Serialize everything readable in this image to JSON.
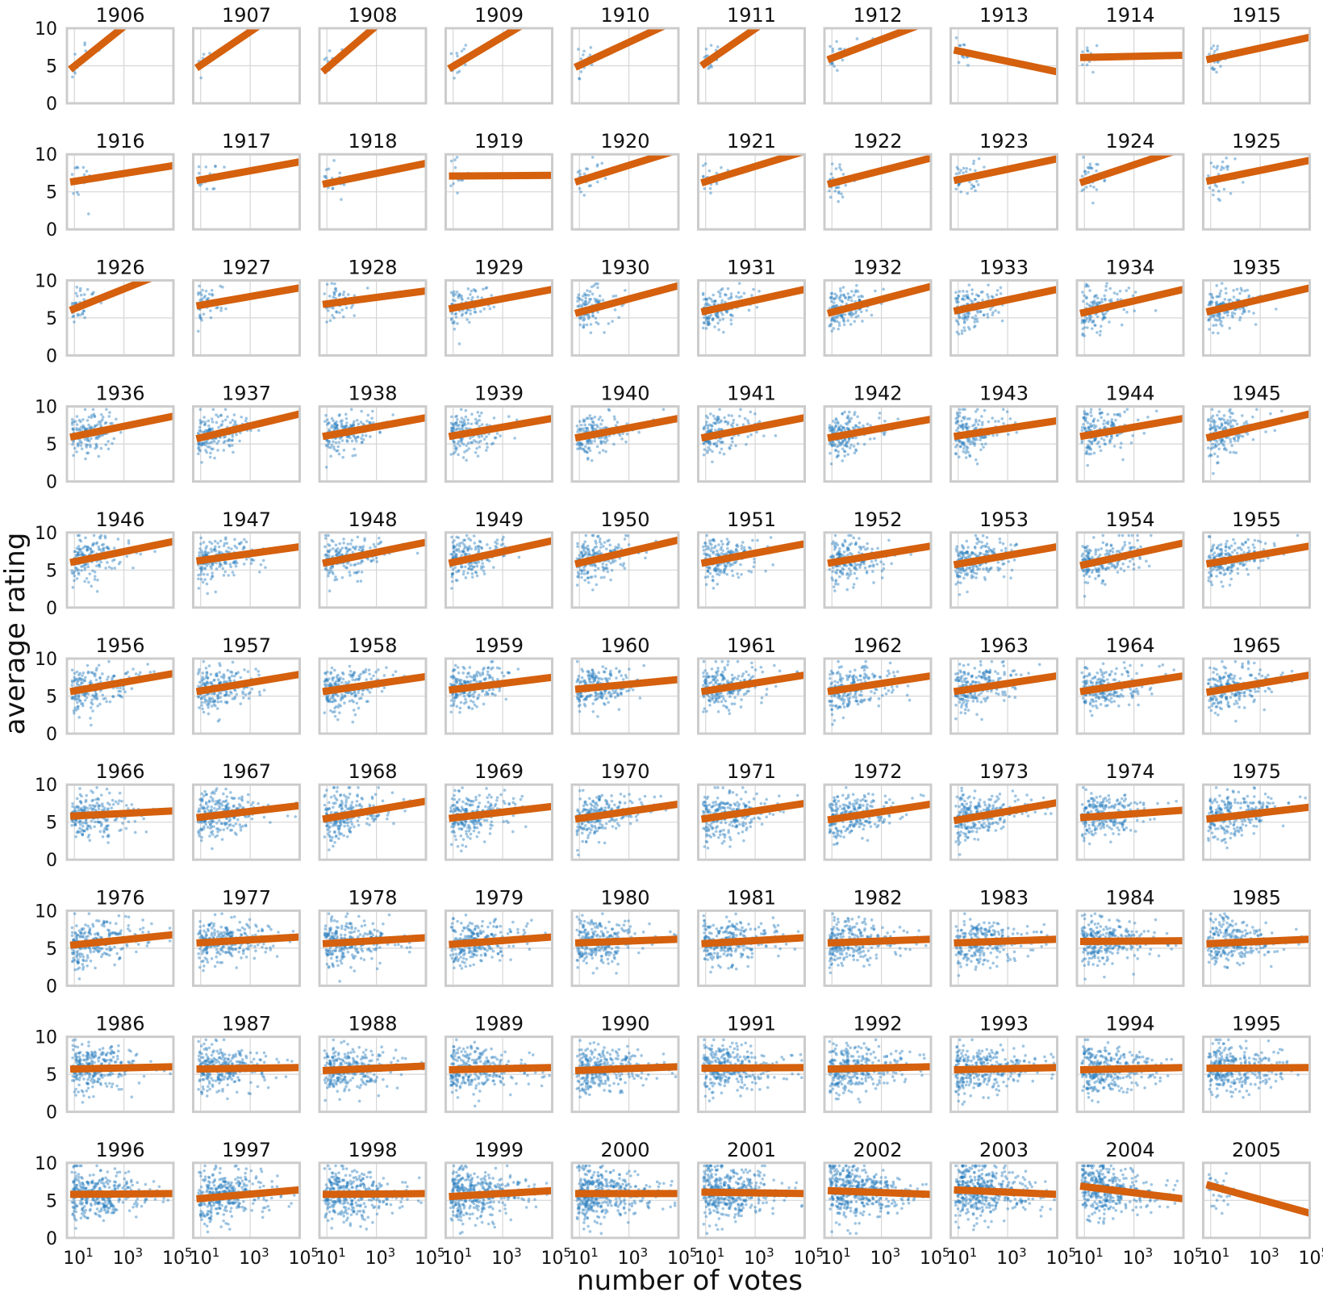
{
  "chart_data": {
    "type": "scatter",
    "layout": "small-multiples",
    "xlabel": "number of votes",
    "ylabel": "average rating",
    "x_scale": "log10",
    "xlim": [
      5,
      100000
    ],
    "ylim": [
      0,
      10
    ],
    "yticks": [
      {
        "value": 0,
        "label": "0"
      },
      {
        "value": 5,
        "label": "5"
      },
      {
        "value": 10,
        "label": "10"
      }
    ],
    "xticks": [
      {
        "value": 10,
        "base": "10",
        "exp": "1"
      },
      {
        "value": 1000,
        "base": "10",
        "exp": "3"
      },
      {
        "value": 100000,
        "base": "10",
        "exp": "5"
      }
    ],
    "grid": true,
    "point_color": "#2a7fbf",
    "line_color": "#d5600d",
    "panels": [
      {
        "year": "1906",
        "fit": [
          4.5,
          15.5
        ],
        "n": 12
      },
      {
        "year": "1907",
        "fit": [
          4.7,
          14.0
        ],
        "n": 8
      },
      {
        "year": "1908",
        "fit": [
          4.2,
          16.0
        ],
        "n": 10
      },
      {
        "year": "1909",
        "fit": [
          4.6,
          12.8
        ],
        "n": 14
      },
      {
        "year": "1910",
        "fit": [
          4.8,
          11.2
        ],
        "n": 18
      },
      {
        "year": "1911",
        "fit": [
          5.0,
          14.5
        ],
        "n": 16
      },
      {
        "year": "1912",
        "fit": [
          5.8,
          11.0
        ],
        "n": 22
      },
      {
        "year": "1913",
        "fit": [
          7.1,
          4.2
        ],
        "n": 16
      },
      {
        "year": "1914",
        "fit": [
          6.1,
          6.4
        ],
        "n": 18
      },
      {
        "year": "1915",
        "fit": [
          5.8,
          8.8
        ],
        "n": 24
      },
      {
        "year": "1916",
        "fit": [
          6.3,
          8.5
        ],
        "n": 22
      },
      {
        "year": "1917",
        "fit": [
          6.5,
          9.0
        ],
        "n": 20
      },
      {
        "year": "1918",
        "fit": [
          6.0,
          8.8
        ],
        "n": 22
      },
      {
        "year": "1919",
        "fit": [
          7.1,
          7.2
        ],
        "n": 18
      },
      {
        "year": "1920",
        "fit": [
          6.3,
          10.6
        ],
        "n": 30
      },
      {
        "year": "1921",
        "fit": [
          6.2,
          10.4
        ],
        "n": 30
      },
      {
        "year": "1922",
        "fit": [
          6.0,
          9.5
        ],
        "n": 34
      },
      {
        "year": "1923",
        "fit": [
          6.5,
          9.4
        ],
        "n": 36
      },
      {
        "year": "1924",
        "fit": [
          6.2,
          10.8
        ],
        "n": 36
      },
      {
        "year": "1925",
        "fit": [
          6.4,
          9.2
        ],
        "n": 40
      },
      {
        "year": "1926",
        "fit": [
          6.0,
          11.5
        ],
        "n": 40
      },
      {
        "year": "1927",
        "fit": [
          6.6,
          9.0
        ],
        "n": 50
      },
      {
        "year": "1928",
        "fit": [
          6.8,
          8.6
        ],
        "n": 60
      },
      {
        "year": "1929",
        "fit": [
          6.2,
          8.8
        ],
        "n": 90
      },
      {
        "year": "1930",
        "fit": [
          5.6,
          9.3
        ],
        "n": 120
      },
      {
        "year": "1931",
        "fit": [
          5.8,
          8.8
        ],
        "n": 140
      },
      {
        "year": "1932",
        "fit": [
          5.6,
          9.2
        ],
        "n": 150
      },
      {
        "year": "1933",
        "fit": [
          5.9,
          8.8
        ],
        "n": 150
      },
      {
        "year": "1934",
        "fit": [
          5.6,
          8.8
        ],
        "n": 150
      },
      {
        "year": "1935",
        "fit": [
          5.8,
          9.0
        ],
        "n": 150
      },
      {
        "year": "1936",
        "fit": [
          5.9,
          8.7
        ],
        "n": 150
      },
      {
        "year": "1937",
        "fit": [
          5.7,
          9.0
        ],
        "n": 160
      },
      {
        "year": "1938",
        "fit": [
          6.0,
          8.5
        ],
        "n": 160
      },
      {
        "year": "1939",
        "fit": [
          6.0,
          8.4
        ],
        "n": 160
      },
      {
        "year": "1940",
        "fit": [
          5.8,
          8.4
        ],
        "n": 160
      },
      {
        "year": "1941",
        "fit": [
          5.8,
          8.5
        ],
        "n": 160
      },
      {
        "year": "1942",
        "fit": [
          5.8,
          8.3
        ],
        "n": 170
      },
      {
        "year": "1943",
        "fit": [
          6.0,
          8.1
        ],
        "n": 170
      },
      {
        "year": "1944",
        "fit": [
          6.0,
          8.4
        ],
        "n": 170
      },
      {
        "year": "1945",
        "fit": [
          5.8,
          9.0
        ],
        "n": 170
      },
      {
        "year": "1946",
        "fit": [
          6.0,
          8.8
        ],
        "n": 170
      },
      {
        "year": "1947",
        "fit": [
          6.2,
          8.1
        ],
        "n": 180
      },
      {
        "year": "1948",
        "fit": [
          5.9,
          8.7
        ],
        "n": 180
      },
      {
        "year": "1949",
        "fit": [
          5.9,
          8.9
        ],
        "n": 180
      },
      {
        "year": "1950",
        "fit": [
          5.8,
          9.0
        ],
        "n": 190
      },
      {
        "year": "1951",
        "fit": [
          5.9,
          8.5
        ],
        "n": 190
      },
      {
        "year": "1952",
        "fit": [
          5.9,
          8.2
        ],
        "n": 200
      },
      {
        "year": "1953",
        "fit": [
          5.7,
          8.1
        ],
        "n": 200
      },
      {
        "year": "1954",
        "fit": [
          5.6,
          8.6
        ],
        "n": 200
      },
      {
        "year": "1955",
        "fit": [
          5.8,
          8.2
        ],
        "n": 200
      },
      {
        "year": "1956",
        "fit": [
          5.6,
          8.0
        ],
        "n": 200
      },
      {
        "year": "1957",
        "fit": [
          5.6,
          7.9
        ],
        "n": 210
      },
      {
        "year": "1958",
        "fit": [
          5.6,
          7.6
        ],
        "n": 210
      },
      {
        "year": "1959",
        "fit": [
          5.8,
          7.5
        ],
        "n": 210
      },
      {
        "year": "1960",
        "fit": [
          5.9,
          7.2
        ],
        "n": 210
      },
      {
        "year": "1961",
        "fit": [
          5.6,
          7.8
        ],
        "n": 220
      },
      {
        "year": "1962",
        "fit": [
          5.6,
          7.7
        ],
        "n": 220
      },
      {
        "year": "1963",
        "fit": [
          5.6,
          7.7
        ],
        "n": 220
      },
      {
        "year": "1964",
        "fit": [
          5.6,
          7.7
        ],
        "n": 220
      },
      {
        "year": "1965",
        "fit": [
          5.5,
          7.8
        ],
        "n": 220
      },
      {
        "year": "1966",
        "fit": [
          5.8,
          6.5
        ],
        "n": 230
      },
      {
        "year": "1967",
        "fit": [
          5.6,
          7.2
        ],
        "n": 240
      },
      {
        "year": "1968",
        "fit": [
          5.4,
          7.8
        ],
        "n": 240
      },
      {
        "year": "1969",
        "fit": [
          5.5,
          7.1
        ],
        "n": 240
      },
      {
        "year": "1970",
        "fit": [
          5.4,
          7.4
        ],
        "n": 240
      },
      {
        "year": "1971",
        "fit": [
          5.4,
          7.5
        ],
        "n": 250
      },
      {
        "year": "1972",
        "fit": [
          5.3,
          7.4
        ],
        "n": 250
      },
      {
        "year": "1973",
        "fit": [
          5.2,
          7.6
        ],
        "n": 250
      },
      {
        "year": "1974",
        "fit": [
          5.6,
          6.6
        ],
        "n": 250
      },
      {
        "year": "1975",
        "fit": [
          5.4,
          7.0
        ],
        "n": 250
      },
      {
        "year": "1976",
        "fit": [
          5.4,
          6.8
        ],
        "n": 260
      },
      {
        "year": "1977",
        "fit": [
          5.7,
          6.5
        ],
        "n": 260
      },
      {
        "year": "1978",
        "fit": [
          5.6,
          6.4
        ],
        "n": 260
      },
      {
        "year": "1979",
        "fit": [
          5.5,
          6.5
        ],
        "n": 260
      },
      {
        "year": "1980",
        "fit": [
          5.7,
          6.2
        ],
        "n": 260
      },
      {
        "year": "1981",
        "fit": [
          5.6,
          6.4
        ],
        "n": 270
      },
      {
        "year": "1982",
        "fit": [
          5.7,
          6.2
        ],
        "n": 270
      },
      {
        "year": "1983",
        "fit": [
          5.7,
          6.2
        ],
        "n": 270
      },
      {
        "year": "1984",
        "fit": [
          5.9,
          6.0
        ],
        "n": 270
      },
      {
        "year": "1985",
        "fit": [
          5.6,
          6.2
        ],
        "n": 270
      },
      {
        "year": "1986",
        "fit": [
          5.7,
          6.0
        ],
        "n": 280
      },
      {
        "year": "1987",
        "fit": [
          5.7,
          5.9
        ],
        "n": 280
      },
      {
        "year": "1988",
        "fit": [
          5.5,
          6.1
        ],
        "n": 290
      },
      {
        "year": "1989",
        "fit": [
          5.6,
          5.9
        ],
        "n": 290
      },
      {
        "year": "1990",
        "fit": [
          5.5,
          6.0
        ],
        "n": 300
      },
      {
        "year": "1991",
        "fit": [
          5.8,
          5.9
        ],
        "n": 300
      },
      {
        "year": "1992",
        "fit": [
          5.7,
          6.0
        ],
        "n": 310
      },
      {
        "year": "1993",
        "fit": [
          5.6,
          5.9
        ],
        "n": 310
      },
      {
        "year": "1994",
        "fit": [
          5.6,
          5.9
        ],
        "n": 320
      },
      {
        "year": "1995",
        "fit": [
          5.8,
          5.9
        ],
        "n": 330
      },
      {
        "year": "1996",
        "fit": [
          5.8,
          5.9
        ],
        "n": 340
      },
      {
        "year": "1997",
        "fit": [
          5.2,
          6.4
        ],
        "n": 350
      },
      {
        "year": "1998",
        "fit": [
          5.8,
          5.9
        ],
        "n": 360
      },
      {
        "year": "1999",
        "fit": [
          5.5,
          6.3
        ],
        "n": 380
      },
      {
        "year": "2000",
        "fit": [
          5.9,
          5.9
        ],
        "n": 400
      },
      {
        "year": "2001",
        "fit": [
          6.1,
          5.9
        ],
        "n": 420
      },
      {
        "year": "2002",
        "fit": [
          6.3,
          5.8
        ],
        "n": 440
      },
      {
        "year": "2003",
        "fit": [
          6.4,
          5.8
        ],
        "n": 440
      },
      {
        "year": "2004",
        "fit": [
          6.9,
          5.2
        ],
        "n": 360
      },
      {
        "year": "2005",
        "fit": [
          7.1,
          3.3
        ],
        "n": 40
      }
    ]
  }
}
